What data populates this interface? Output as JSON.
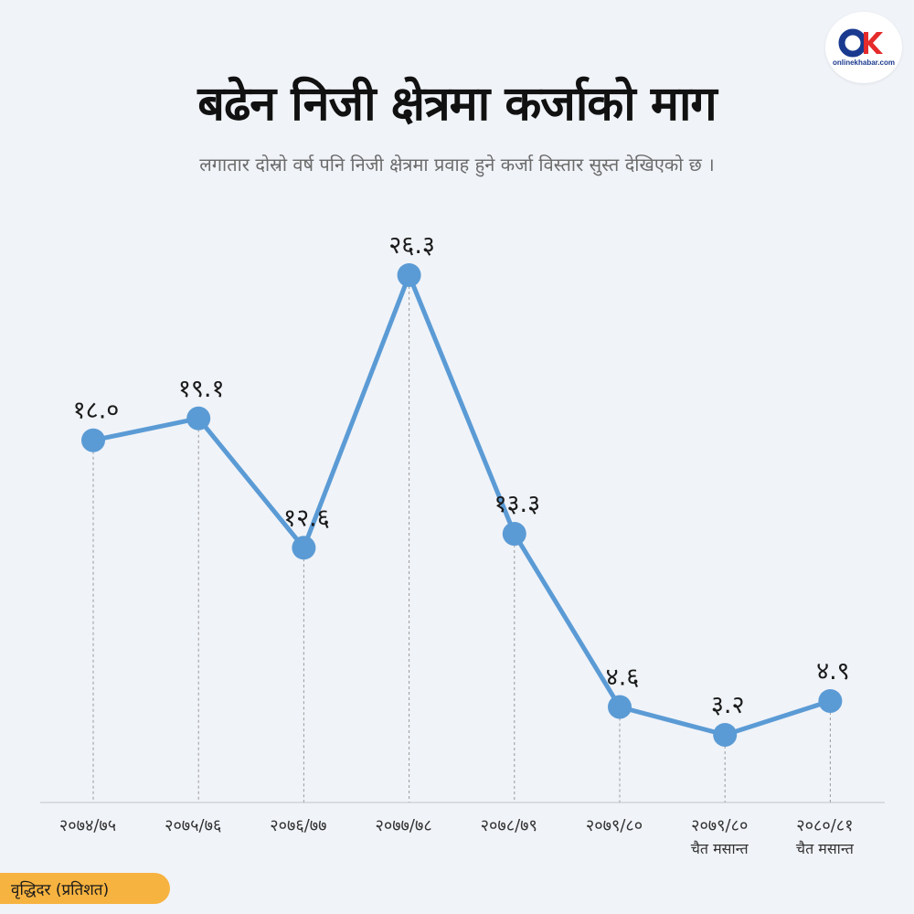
{
  "header": {
    "title": "बढेन निजी क्षेत्रमा कर्जाको माग",
    "subtitle": "लगातार दोस्रो वर्ष पनि निजी क्षेत्रमा प्रवाह हुने कर्जा विस्तार सुस्त देखिएको छ ।"
  },
  "logo": {
    "mark": "OK",
    "text": "onlinekhabar.com"
  },
  "legend_tab": {
    "label": "वृद्धिदर  (प्रतिशत)"
  },
  "colors": {
    "line": "#5b9bd5",
    "accent": "#f7b340",
    "background": "#f0f3f8",
    "text": "#111111"
  },
  "chart_data": {
    "type": "line",
    "title": "बढेन निजी क्षेत्रमा कर्जाको माग",
    "ylabel": "वृद्धिदर  (प्रतिशत)",
    "categories": [
      "२०७४/७५",
      "२०७५/७६",
      "२०७६/७७",
      "२०७७/७८",
      "२०७८/७९",
      "२०७९/८०",
      "२०७९/८०",
      "२०८०/८१"
    ],
    "category_sublabels": [
      "",
      "",
      "",
      "",
      "",
      "",
      "चैत मसान्त",
      "चैत मसान्त"
    ],
    "values": [
      18.0,
      19.1,
      12.6,
      26.3,
      13.3,
      4.6,
      3.2,
      4.9
    ],
    "data_labels": [
      "१८.०",
      "१९.१",
      "१२.६",
      "२६.३",
      "१३.३",
      "४.६",
      "३.२",
      "४.९"
    ],
    "ylim": [
      -0.2,
      26.3
    ],
    "grid": false,
    "drop_lines": true
  }
}
